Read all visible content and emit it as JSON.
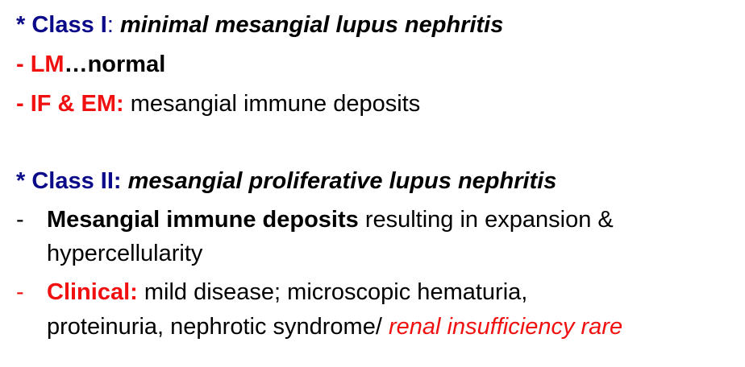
{
  "colors": {
    "heading_blue": "#0b0b8a",
    "accent_red": "#f01010",
    "text_black": "#000000",
    "background": "#ffffff"
  },
  "class1": {
    "heading_prefix": "* Class I",
    "heading_colon": ":",
    "heading_title": " minimal mesangial lupus nephritis",
    "lm_prefix": "- LM",
    "lm_text": "…normal",
    "ifem_prefix": "- IF & EM:",
    "ifem_text": " mesangial immune deposits"
  },
  "class2": {
    "heading_prefix": "* Class II:",
    "heading_title": " mesangial proliferative lupus nephritis",
    "bullet1_dash": "-",
    "bullet1_bold": "Mesangial immune deposits",
    "bullet1_text": " resulting in expansion &",
    "bullet1_cont": "hypercellularity",
    "bullet2_dash": "-",
    "bullet2_label": "Clinical:",
    "bullet2_text": "  mild disease;  microscopic hematuria,",
    "bullet2_cont": "proteinuria, nephrotic syndrome/ ",
    "bullet2_emph": "renal insufficiency rare"
  }
}
